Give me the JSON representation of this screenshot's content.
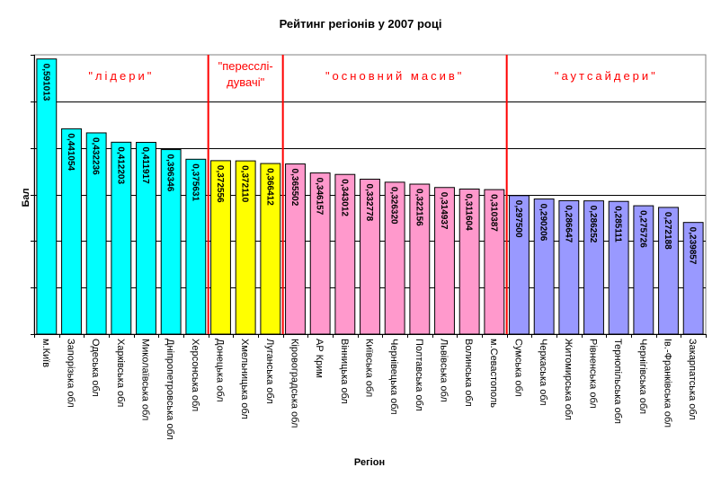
{
  "chart_data": {
    "type": "bar",
    "title": "Рейтинг регіонів у 2007 році",
    "xlabel": "Регіон",
    "ylabel": "Бал",
    "ylim": [
      0,
      0.6
    ],
    "grid": true,
    "categories": [
      "м.Київ",
      "Запорізька обл",
      "Одеська обл",
      "Харківська обл",
      "Миколаївська обл",
      "Дніпропетровська обл",
      "Херсонська обл",
      "Донецька обл",
      "Хмельницька обл",
      "Луганська обл",
      "Кіровоградська обл",
      "АР Крим",
      "Вінницька обл",
      "Київська обл",
      "Чернівецька обл",
      "Полтавська обл",
      "Львівська обл",
      "Волинська обл",
      "м.Севастополь",
      "Сумська обл",
      "Черкаська обл",
      "Житомирська обл",
      "Рівненська обл",
      "Тернопільська обл",
      "Чернігівська обл",
      "Ів.-Франківська обл",
      "Закарпатська обл"
    ],
    "values": [
      0.591013,
      0.441054,
      0.432236,
      0.412203,
      0.411917,
      0.396346,
      0.375631,
      0.372556,
      0.37211,
      0.366412,
      0.365502,
      0.346157,
      0.343012,
      0.332778,
      0.32632,
      0.322156,
      0.314937,
      0.311604,
      0.310387,
      0.2975,
      0.290206,
      0.286647,
      0.286252,
      0.285111,
      0.275726,
      0.272188,
      0.239857
    ],
    "value_labels": [
      "0,591013",
      "0,441054",
      "0,432236",
      "0,412203",
      "0,411917",
      "0,396346",
      "0,375631",
      "0,372556",
      "0,372110",
      "0,366412",
      "0,365502",
      "0,346157",
      "0,343012",
      "0,332778",
      "0,326320",
      "0,322156",
      "0,314937",
      "0,311604",
      "0,310387",
      "0,297500",
      "0,290206",
      "0,286647",
      "0,286252",
      "0,285111",
      "0,275726",
      "0,272188",
      "0,239857"
    ],
    "groups": [
      {
        "label": "\"лідери\"",
        "start": 0,
        "end": 6,
        "color": "#00ffff"
      },
      {
        "label_line1": "\"пересслі-",
        "label_line2": "дувачі\"",
        "start": 7,
        "end": 9,
        "color": "#ffff00"
      },
      {
        "label": "\"основний масив\"",
        "start": 10,
        "end": 18,
        "color": "#ff99cc"
      },
      {
        "label": "\"аутсайдери\"",
        "start": 19,
        "end": 26,
        "color": "#9999ff"
      }
    ],
    "separator_color": "#ff0000",
    "plot_background": "#ffffff"
  }
}
